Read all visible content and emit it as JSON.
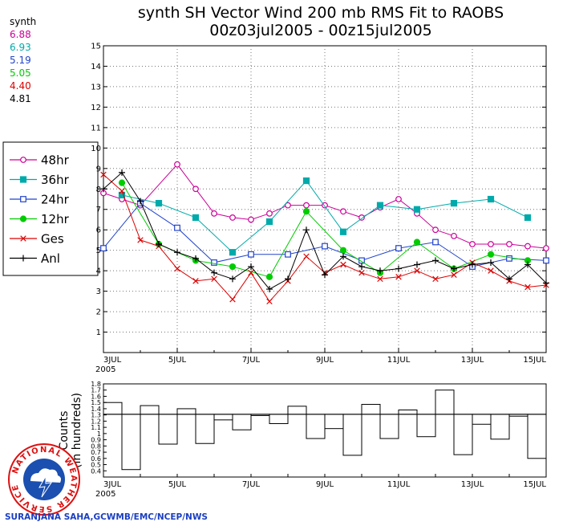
{
  "title_line1": "synth SH Vector Wind 200 mb RMS Fit to RAOBS",
  "title_line2": "00z03jul2005 - 00z15jul2005",
  "credit": "SURANJANA SAHA,GCWMB/EMC/NCEP/NWS",
  "logo_text": "NATIONAL WEATHER SERVICE",
  "summary": {
    "heading": "synth",
    "entries": [
      {
        "value": "6.88",
        "color": "#cc0099"
      },
      {
        "value": "6.93",
        "color": "#00aaaa"
      },
      {
        "value": "5.19",
        "color": "#2244cc"
      },
      {
        "value": "5.05",
        "color": "#00cc00"
      },
      {
        "value": "4.40",
        "color": "#dd0000"
      },
      {
        "value": "4.81",
        "color": "#000000"
      }
    ]
  },
  "chart_data": [
    {
      "type": "line",
      "x_tick_labels": [
        "3JUL",
        "5JUL",
        "7JUL",
        "9JUL",
        "11JUL",
        "13JUL",
        "15JUL"
      ],
      "x_year_label": "2005",
      "x_tick_days": [
        3,
        5,
        7,
        9,
        11,
        13,
        15
      ],
      "xlim_days": [
        3,
        15
      ],
      "ylim": [
        0,
        15
      ],
      "y_ticks": [
        1,
        2,
        3,
        4,
        5,
        6,
        7,
        8,
        9,
        10,
        11,
        12,
        13,
        14,
        15
      ],
      "legend_position": "left",
      "series": [
        {
          "name": "48hr",
          "color": "#cc0099",
          "marker": "open-circle",
          "x": [
            3,
            3.5,
            4,
            5,
            5.5,
            6,
            6.5,
            7,
            7.5,
            8,
            8.5,
            9,
            9.5,
            10,
            10.5,
            11,
            11.5,
            12,
            12.5,
            13,
            13.5,
            14,
            14.5,
            15
          ],
          "values": [
            7.8,
            7.5,
            7.2,
            9.2,
            8.0,
            6.8,
            6.6,
            6.5,
            6.8,
            7.2,
            7.2,
            7.2,
            6.9,
            6.6,
            7.1,
            7.5,
            6.8,
            6.0,
            5.7,
            5.3,
            5.3,
            5.3,
            5.2,
            5.1
          ]
        },
        {
          "name": "36hr",
          "color": "#00aaaa",
          "marker": "filled-square",
          "x": [
            3.5,
            4.5,
            5.5,
            6.5,
            7.5,
            8.5,
            9.5,
            10.5,
            11.5,
            12.5,
            13.5,
            14.5
          ],
          "values": [
            7.7,
            7.3,
            6.6,
            4.9,
            6.4,
            8.4,
            5.9,
            7.2,
            7.0,
            7.3,
            7.5,
            6.6
          ]
        },
        {
          "name": "24hr",
          "color": "#2244cc",
          "marker": "open-square",
          "x": [
            3,
            4,
            5,
            6,
            7,
            8,
            9,
            10,
            11,
            12,
            13,
            14,
            15
          ],
          "values": [
            5.1,
            7.3,
            6.1,
            4.4,
            4.8,
            4.8,
            5.2,
            4.5,
            5.1,
            5.4,
            4.2,
            4.6,
            4.5
          ]
        },
        {
          "name": "12hr",
          "color": "#00cc00",
          "marker": "filled-circle",
          "x": [
            3.5,
            4.5,
            5.5,
            6.5,
            7.5,
            8.5,
            9.5,
            10.5,
            11.5,
            12.5,
            13.5,
            14.5
          ],
          "values": [
            8.3,
            5.3,
            4.5,
            4.2,
            3.7,
            6.9,
            5.0,
            3.9,
            5.4,
            4.1,
            4.8,
            4.5
          ]
        },
        {
          "name": "Ges",
          "color": "#dd0000",
          "marker": "x",
          "x": [
            3,
            3.5,
            4,
            4.5,
            5,
            5.5,
            6,
            6.5,
            7,
            7.5,
            8,
            8.5,
            9,
            9.5,
            10,
            10.5,
            11,
            11.5,
            12,
            12.5,
            13,
            13.5,
            14,
            14.5,
            15
          ],
          "values": [
            8.7,
            7.9,
            5.5,
            5.2,
            4.1,
            3.5,
            3.6,
            2.6,
            3.9,
            2.5,
            3.5,
            4.7,
            3.9,
            4.3,
            3.9,
            3.6,
            3.7,
            4.0,
            3.6,
            3.8,
            4.4,
            4.0,
            3.5,
            3.2,
            3.3
          ]
        },
        {
          "name": "Anl",
          "color": "#000000",
          "marker": "plus",
          "x": [
            3,
            3.5,
            4,
            4.5,
            5,
            5.5,
            6,
            6.5,
            7,
            7.5,
            8,
            8.5,
            9,
            9.5,
            10,
            10.5,
            11,
            11.5,
            12,
            12.5,
            13,
            13.5,
            14,
            14.5,
            15
          ],
          "values": [
            8.0,
            8.8,
            7.4,
            5.3,
            4.9,
            4.6,
            3.9,
            3.6,
            4.2,
            3.1,
            3.6,
            6.0,
            3.8,
            4.7,
            4.2,
            4.0,
            4.1,
            4.3,
            4.5,
            4.1,
            4.3,
            4.4,
            3.6,
            4.3,
            3.4
          ]
        }
      ]
    },
    {
      "type": "bar",
      "ylabel": "Counts\n(in hundreds)",
      "x_tick_labels": [
        "3JUL",
        "5JUL",
        "7JUL",
        "9JUL",
        "11JUL",
        "13JUL",
        "15JUL"
      ],
      "x_year_label": "2005",
      "xlim_days": [
        3,
        15
      ],
      "ylim": [
        0.3,
        1.8
      ],
      "y_tick_labels": [
        "0.4",
        "0.5",
        "0.6",
        "0.7",
        "0.8",
        "0.9",
        "1",
        "1.1",
        "1.2",
        "1.3",
        "1.4",
        "1.5",
        "1.6",
        "1.7",
        "1.8"
      ],
      "mean_line": 1.31,
      "bin_start_days": [
        3,
        3.5,
        4,
        4.5,
        5,
        5.5,
        6,
        6.5,
        7,
        7.5,
        8,
        8.5,
        9,
        9.5,
        10,
        10.5,
        11,
        11.5,
        12,
        12.5,
        13,
        13.5,
        14,
        14.5
      ],
      "values": [
        1.5,
        0.42,
        1.45,
        0.83,
        1.4,
        0.84,
        1.22,
        1.06,
        1.29,
        1.16,
        1.44,
        0.92,
        1.08,
        0.65,
        1.47,
        0.92,
        1.38,
        0.95,
        1.7,
        0.66,
        1.15,
        0.91,
        1.28,
        0.6
      ]
    }
  ]
}
